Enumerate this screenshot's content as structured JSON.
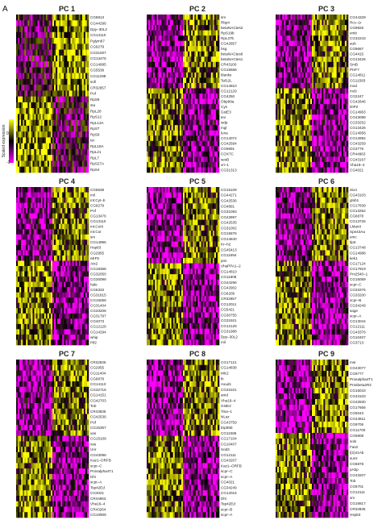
{
  "figure_label": "A",
  "chart_data": {
    "type": "heatmap",
    "colorbar": {
      "label": "Scaled expression",
      "ticks": [
        {
          "value": 0,
          "label": "0"
        },
        {
          "value": -1,
          "label": "-1"
        }
      ],
      "range": [
        -1.5,
        2.0
      ],
      "colors": {
        "low": "#ff00ff",
        "mid": "#000000",
        "high": "#ffff00"
      }
    },
    "panels": [
      {
        "title": "PC 1",
        "genes": [
          "CG8813",
          "CG44296",
          "Dpy–30L2",
          "CG13110",
          "Pglym87",
          "CG9279",
          "CG31007",
          "CG13476",
          "CG14995",
          "CG5538",
          "CG11298",
          "sofi",
          "CR32657",
          "Pof",
          "RpS9",
          "sta",
          "RpL28",
          "RpS12",
          "RpL13A",
          "RpS7",
          "RpS9",
          "tsr",
          "RpL18A",
          "RpL21",
          "RpL7",
          "RpS27A",
          "RpS4"
        ]
      },
      {
        "title": "PC 2",
        "genes": [
          "sm",
          "Rbp4",
          "betaNACtes2",
          "RpS19b",
          "RpL37b",
          "CG42857",
          "hsg",
          "betaNACtes6",
          "betaNACtes1",
          "CR43100",
          "CG15566",
          "blanks",
          "Taf12L",
          "CG14810",
          "CG12129",
          "CG4250",
          "Obp99a",
          "Cys",
          "GstE3",
          "tex",
          "wdp",
          "mgl",
          "luna",
          "CG14072",
          "CG42594",
          "CG9691",
          "COX7C",
          "sesB",
          "vri–1",
          "CG31313"
        ]
      },
      {
        "title": "PC 3",
        "genes": [
          "CG44329",
          "Rcc–1r",
          "CG9926",
          "emb",
          "CG32243",
          "aub",
          "CG9667",
          "CG4415",
          "CG13426",
          "SmB",
          "PHF7",
          "CG14811",
          "CG11583",
          "mod",
          "mcb",
          "CG2247",
          "CG42846",
          "DIP2",
          "CG14963",
          "CG43098",
          "CG33252",
          "CG13426",
          "CG14958",
          "CG14992",
          "CG43259",
          "CG3776",
          "CR44963",
          "CG43167",
          "Vha16–4",
          "CG4021"
        ]
      },
      {
        "title": "PC 4",
        "genes": [
          "CG5538",
          "mil",
          "mt:Cyt–b",
          "CG9279",
          "Pof",
          "CG13476",
          "CG13110",
          "mt:CoIII",
          "mt:CoI",
          "sm",
          "CG14995",
          "Hsp83",
          "CG2955",
          "eEF5",
          "Atx2",
          "CG18368",
          "CG32050",
          "CG30099",
          "hale",
          "CG6333",
          "CG31815",
          "CG15059",
          "CG31404",
          "CG33208",
          "CG31797",
          "CG4073",
          "CG12126",
          "CG14294",
          "whip",
          "Pif2"
        ]
      },
      {
        "title": "PC 5",
        "genes": [
          "CG15109",
          "CG44271",
          "CG42536",
          "CG4891",
          "CG31093",
          "CG43997",
          "CG42535",
          "CG31002",
          "CG15876",
          "CG14840",
          "Kr–h2",
          "CG45413",
          "CG11694",
          "pim",
          "VhaPPA1–2",
          "CG14810",
          "CG11808",
          "CG44296",
          "CG42902",
          "CG6209",
          "CR32657",
          "CG12011",
          "CG5421",
          "CG30755",
          "CG31921",
          "CG12126",
          "CG31988",
          "Dpy–30L2",
          "mil"
        ]
      },
      {
        "title": "PC 6",
        "genes": [
          "Six4",
          "CG43103",
          "glob1",
          "CG17839",
          "CG13252",
          "CG6878",
          "CG13726",
          "LManII",
          "Spn43Aa",
          "emc",
          "Ilp6",
          "CG13748",
          "CG14988",
          "kek1",
          "CG17124",
          "CG17919",
          "Prx2540–1",
          "CG15059",
          "scpr–C",
          "CG33376",
          "CG33200",
          "scpr–B",
          "CG34249",
          "sage",
          "scpr–A",
          "CG13044",
          "CG12111",
          "CG43376",
          "CG10407",
          "CG3713"
        ]
      },
      {
        "title": "PC 7",
        "genes": [
          "CR32835",
          "CG2955",
          "CG11404",
          "CG6878",
          "CG14113",
          "CG32718",
          "CG14151",
          "CG42703",
          "Tob",
          "CR43835",
          "CG42536",
          "Pof",
          "CG15357",
          "vas",
          "CG15109",
          "vas",
          "Unr",
          "CG43098",
          "Kaz1–ORFB",
          "scpr–C",
          "Prosalpha4T1",
          "Dhi",
          "scpr–A",
          "Tsp42Ed",
          "CG4021",
          "CR44963",
          "Vha16–4",
          "CR43264",
          "CG10909"
        ]
      },
      {
        "title": "PC 8",
        "genes": [
          "CG17121",
          "CG14838",
          "Mlc2",
          "lh",
          "Axud1",
          "CG33101",
          "amd",
          "Vha16–4",
          "GstE2",
          "Tina–1",
          "NLaz",
          "CG43759",
          "Eip55E",
          "CG11086",
          "CG17104",
          "CG10407",
          "Sod3",
          "CG12111",
          "CG43207",
          "Kaz1–ORFB",
          "scpr–C",
          "scpr–A",
          "CG4021",
          "CG34249",
          "CG12016",
          "Dhi",
          "Tsp42Ed",
          "scpr–B",
          "scpr–A"
        ]
      },
      {
        "title": "PC 9",
        "genes": [
          "msr",
          "CG43077",
          "CG9777",
          "Prosalpha4T1",
          "Prosbeta2R2",
          "CG15043",
          "CG43103",
          "CG42830",
          "CG17666",
          "CG5043",
          "CG44811",
          "CG9706",
          "CG11700",
          "CG6908",
          "sols",
          "Fas2",
          "l(2)41Ab",
          "sunz",
          "CG6878",
          "pAbp",
          "CG43207",
          "Tob",
          "CG6701",
          "CG12111",
          "sm",
          "CG16817",
          "CR32835",
          "Hsp83"
        ]
      }
    ]
  }
}
